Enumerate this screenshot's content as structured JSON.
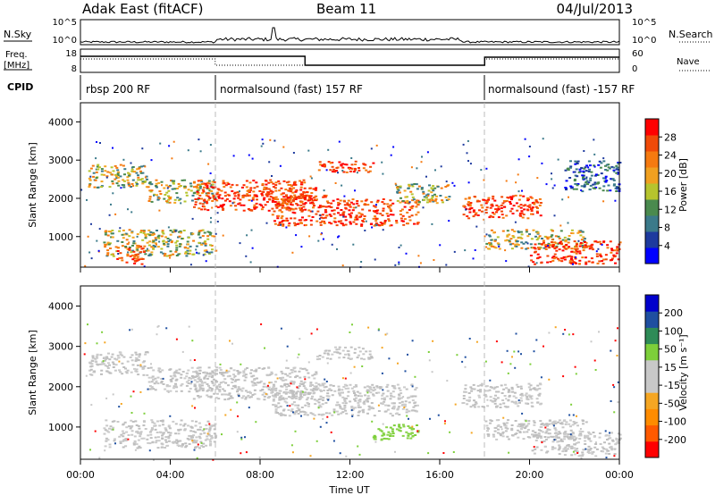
{
  "header": {
    "title": "Adak East (fitACF)",
    "beam": "Beam 11",
    "date": "04/Jul/2013"
  },
  "top_panels": {
    "nsky_label": "N.Sky",
    "nsearch_label": "N.Search",
    "nsky_ticks": [
      "10^5",
      "10^0"
    ],
    "nsearch_ticks": [
      "10^5",
      "10^0"
    ],
    "freq_label": "Freq.",
    "freq_unit": "[MHz]",
    "freq_ticks": [
      "18",
      "8"
    ],
    "nave_label": "Nave",
    "nave_ticks": [
      "60",
      "0"
    ],
    "cpid_label": "CPID",
    "cpid_segments": [
      {
        "label": "rbsp 200 RF",
        "start_hour": 0
      },
      {
        "label": "normalsound (fast) 157 RF",
        "start_hour": 6
      },
      {
        "label": "normalsound (fast) -157 RF",
        "start_hour": 18
      }
    ]
  },
  "chart_data": [
    {
      "type": "heatmap",
      "name": "power-panel",
      "ylabel": "Slant Range [km]",
      "xlabel": "Time UT",
      "x_range_hours": [
        0,
        24
      ],
      "ylim": [
        200,
        4500
      ],
      "y_ticks": [
        1000,
        2000,
        3000,
        4000
      ],
      "x_tick_labels": [
        "00:00",
        "04:00",
        "08:00",
        "12:00",
        "16:00",
        "20:00",
        "00:00"
      ],
      "colorbar": {
        "label": "Power [dB]",
        "ticks": [
          "28",
          "24",
          "20",
          "16",
          "12",
          "8",
          "4"
        ],
        "colors": [
          "#0000ff",
          "#1e3a9e",
          "#3b7a8a",
          "#4a8a4e",
          "#b6c42e",
          "#f0a020",
          "#f57a10",
          "#f04a08",
          "#ff0000"
        ]
      },
      "bands": [
        {
          "x": [
            0.3,
            3.0
          ],
          "y": [
            2300,
            2900
          ],
          "level": "mid"
        },
        {
          "x": [
            1.0,
            6.0
          ],
          "y": [
            500,
            1200
          ],
          "level": "mid"
        },
        {
          "x": [
            1.6,
            2.8
          ],
          "y": [
            300,
            800
          ],
          "level": "high"
        },
        {
          "x": [
            3.0,
            6.0
          ],
          "y": [
            1900,
            2500
          ],
          "level": "mid"
        },
        {
          "x": [
            5.0,
            10.0
          ],
          "y": [
            1700,
            2500
          ],
          "level": "high"
        },
        {
          "x": [
            8.0,
            10.5
          ],
          "y": [
            1900,
            2300
          ],
          "level": "high"
        },
        {
          "x": [
            8.5,
            11.0
          ],
          "y": [
            1300,
            2100
          ],
          "level": "high"
        },
        {
          "x": [
            10.5,
            13.0
          ],
          "y": [
            2700,
            3000
          ],
          "level": "high"
        },
        {
          "x": [
            11.0,
            15.0
          ],
          "y": [
            1300,
            2000
          ],
          "level": "high"
        },
        {
          "x": [
            14.0,
            16.5
          ],
          "y": [
            1900,
            2400
          ],
          "level": "mid"
        },
        {
          "x": [
            17.0,
            20.5
          ],
          "y": [
            1500,
            2100
          ],
          "level": "high"
        },
        {
          "x": [
            18.0,
            22.5
          ],
          "y": [
            700,
            1200
          ],
          "level": "mid"
        },
        {
          "x": [
            20.0,
            24.0
          ],
          "y": [
            300,
            900
          ],
          "level": "high"
        },
        {
          "x": [
            21.5,
            24.0
          ],
          "y": [
            2200,
            3000
          ],
          "level": "low"
        }
      ]
    },
    {
      "type": "heatmap",
      "name": "velocity-panel",
      "ylabel": "Slant Range [km]",
      "xlabel": "Time UT",
      "x_range_hours": [
        0,
        24
      ],
      "ylim": [
        200,
        4500
      ],
      "y_ticks": [
        1000,
        2000,
        3000,
        4000
      ],
      "x_tick_labels": [
        "00:00",
        "04:00",
        "08:00",
        "12:00",
        "16:00",
        "20:00",
        "00:00"
      ],
      "colorbar": {
        "label": "Velocity [m s⁻¹]",
        "ticks": [
          "200",
          "100",
          "50",
          "15",
          "-15",
          "-50",
          "-100",
          "-200"
        ],
        "colors": [
          "#ff0000",
          "#ff5a00",
          "#ff8c00",
          "#f5a623",
          "#c8c8c8",
          "#c8c8c8",
          "#7dcf3a",
          "#2e8b57",
          "#1f4fa0",
          "#0000cc"
        ]
      },
      "bands": [
        {
          "x": [
            0.3,
            3.0
          ],
          "y": [
            2300,
            2900
          ],
          "level": "gray"
        },
        {
          "x": [
            1.0,
            6.0
          ],
          "y": [
            500,
            1200
          ],
          "level": "gray"
        },
        {
          "x": [
            3.0,
            6.0
          ],
          "y": [
            1900,
            2500
          ],
          "level": "gray"
        },
        {
          "x": [
            5.0,
            10.5
          ],
          "y": [
            1700,
            2500
          ],
          "level": "gray"
        },
        {
          "x": [
            8.5,
            15.0
          ],
          "y": [
            1300,
            2100
          ],
          "level": "gray"
        },
        {
          "x": [
            10.5,
            13.0
          ],
          "y": [
            2700,
            3000
          ],
          "level": "gray"
        },
        {
          "x": [
            13.0,
            15.0
          ],
          "y": [
            700,
            1100
          ],
          "level": "green"
        },
        {
          "x": [
            17.0,
            20.5
          ],
          "y": [
            1500,
            2100
          ],
          "level": "gray"
        },
        {
          "x": [
            18.0,
            22.5
          ],
          "y": [
            700,
            1200
          ],
          "level": "gray"
        },
        {
          "x": [
            20.0,
            24.0
          ],
          "y": [
            300,
            900
          ],
          "level": "gray"
        }
      ]
    }
  ],
  "footer": {
    "xlabel": "Time UT"
  }
}
